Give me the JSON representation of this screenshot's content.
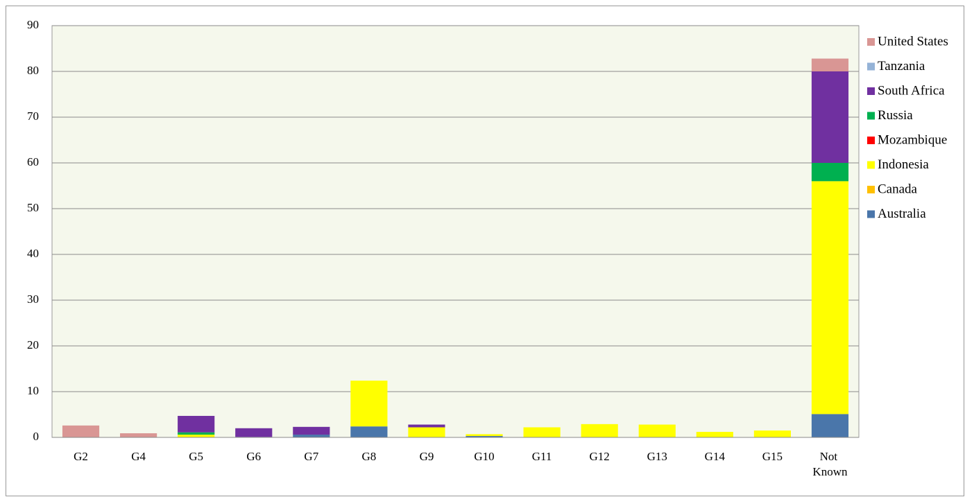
{
  "chart_data": {
    "type": "stacked_bar",
    "categories": [
      "G2",
      "G4",
      "G5",
      "G6",
      "G7",
      "G8",
      "G9",
      "G10",
      "G11",
      "G12",
      "G13",
      "G14",
      "G15",
      "Not Known"
    ],
    "series": [
      {
        "name": "Australia",
        "color": "#4a76aa",
        "values": [
          0,
          0,
          0,
          0.1,
          0.6,
          2.4,
          0,
          0.3,
          0,
          0,
          0,
          0,
          0,
          5.1
        ]
      },
      {
        "name": "Canada",
        "color": "#ffc000",
        "values": [
          0,
          0,
          0,
          0,
          0,
          0,
          0,
          0,
          0,
          0,
          0,
          0,
          0,
          0
        ]
      },
      {
        "name": "Indonesia",
        "color": "#ffff00",
        "values": [
          0,
          0,
          0.6,
          0,
          0,
          10.0,
          2.2,
          0.4,
          2.2,
          2.9,
          2.8,
          1.2,
          1.5,
          50.9
        ]
      },
      {
        "name": "Mozambique",
        "color": "#ff0000",
        "values": [
          0,
          0,
          0,
          0,
          0,
          0,
          0,
          0,
          0,
          0,
          0,
          0,
          0,
          0
        ]
      },
      {
        "name": "Russia",
        "color": "#00b050",
        "values": [
          0,
          0,
          0.5,
          0,
          0,
          0,
          0,
          0,
          0,
          0,
          0,
          0,
          0,
          4.0
        ]
      },
      {
        "name": "South Africa",
        "color": "#7030a0",
        "values": [
          0,
          0,
          3.6,
          1.9,
          1.7,
          0,
          0.6,
          0,
          0,
          0,
          0,
          0,
          0,
          20.0
        ]
      },
      {
        "name": "Tanzania",
        "color": "#95b3d7",
        "values": [
          0,
          0,
          0,
          0,
          0,
          0,
          0,
          0,
          0,
          0,
          0,
          0,
          0,
          0
        ]
      },
      {
        "name": "United States",
        "color": "#d99694",
        "values": [
          2.6,
          0.9,
          0,
          0,
          0,
          0,
          0,
          0,
          0,
          0,
          0,
          0,
          0,
          2.8
        ]
      }
    ],
    "ylim": [
      0,
      90
    ],
    "yticks": [
      0,
      10,
      20,
      30,
      40,
      50,
      60,
      70,
      80,
      90
    ],
    "grid": true,
    "legend": "right"
  }
}
